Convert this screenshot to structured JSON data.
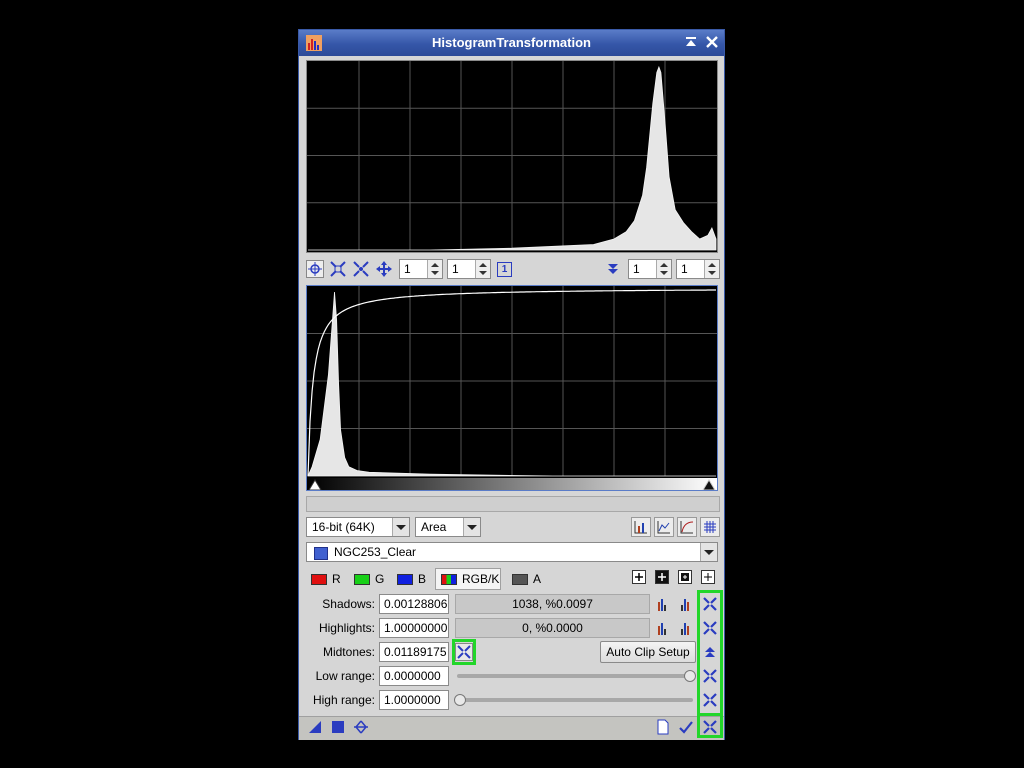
{
  "window": {
    "title": "HistogramTransformation",
    "title_buttons": [
      "shade-icon",
      "close-icon"
    ]
  },
  "upper_toolbar": {
    "icons": [
      "crosshair-icon",
      "zoom-fit-icon",
      "zoom-reset-icon",
      "pan-icon"
    ],
    "zoom_x": "1",
    "zoom_y": "1",
    "page_badge": "1",
    "down_icon": "arrow-down-icon",
    "zoom_x2": "1",
    "zoom_y2": "1"
  },
  "chart_data": [
    {
      "type": "area",
      "title": "",
      "description": "Output histogram preview; single peak near 0.86 of range",
      "xlim": [
        0,
        1
      ],
      "x": [
        0.0,
        0.1,
        0.3,
        0.5,
        0.7,
        0.75,
        0.78,
        0.8,
        0.82,
        0.83,
        0.845,
        0.855,
        0.86,
        0.865,
        0.875,
        0.885,
        0.9,
        0.92,
        0.94,
        0.96,
        0.98,
        0.99,
        1.0
      ],
      "values": [
        0.0,
        0.0,
        0.0,
        0.01,
        0.03,
        0.06,
        0.1,
        0.16,
        0.3,
        0.45,
        0.8,
        0.97,
        1.0,
        0.97,
        0.7,
        0.4,
        0.22,
        0.15,
        0.1,
        0.06,
        0.08,
        0.12,
        0.06
      ],
      "grid": true
    },
    {
      "type": "area",
      "title": "",
      "description": "Input histogram with midtones transfer curve",
      "xlim": [
        0,
        1
      ],
      "x": [
        0.0,
        0.01,
        0.03,
        0.05,
        0.06,
        0.065,
        0.07,
        0.075,
        0.08,
        0.09,
        0.1,
        0.12,
        0.15,
        0.3,
        0.6,
        1.0
      ],
      "values": [
        0.0,
        0.05,
        0.2,
        0.55,
        0.85,
        1.0,
        0.85,
        0.5,
        0.25,
        0.1,
        0.05,
        0.03,
        0.02,
        0.01,
        0.0,
        0.0
      ],
      "curve": {
        "midtones": 0.01189175
      },
      "grid": true
    }
  ],
  "options_row": {
    "bit_depth": "16-bit (64K)",
    "mode": "Area",
    "right_icons": [
      "linear-graph-icon",
      "log-graph-icon",
      "curve-icon",
      "grid-icon"
    ]
  },
  "view_selector": {
    "value": "NGC253_Clear"
  },
  "channels": [
    {
      "label": "R",
      "color": "#e01010"
    },
    {
      "label": "G",
      "color": "#18d018"
    },
    {
      "label": "B",
      "color": "#1020e0"
    },
    {
      "label": "RGB/K",
      "color": "#444444",
      "selected": true
    },
    {
      "label": "A",
      "color": "#555555"
    }
  ],
  "channel_icons": [
    "zoom-in-icon",
    "zoom-in-dark-icon",
    "zoom-out-icon",
    "zoom-out-outline-icon"
  ],
  "params": {
    "shadows": {
      "label": "Shadows:",
      "value": "0.00128806",
      "clip": "1038, %0.0097"
    },
    "highlights": {
      "label": "Highlights:",
      "value": "1.00000000",
      "clip": "0, %0.0000"
    },
    "midtones": {
      "label": "Midtones:",
      "value": "0.01189175"
    },
    "low_range": {
      "label": "Low range:",
      "value": "0.0000000"
    },
    "high_range": {
      "label": "High range:",
      "value": "1.0000000"
    },
    "auto_clip_label": "Auto Clip Setup"
  },
  "accent": {
    "highlight": "#22d62a",
    "icon_blue": "#2a3cc0"
  },
  "bottom_bar": {
    "left_icons": [
      "new-instance-icon",
      "view-icon",
      "reset-icon"
    ],
    "right_icons": [
      "document-icon",
      "apply-check-icon",
      "reset-all-icon"
    ]
  }
}
